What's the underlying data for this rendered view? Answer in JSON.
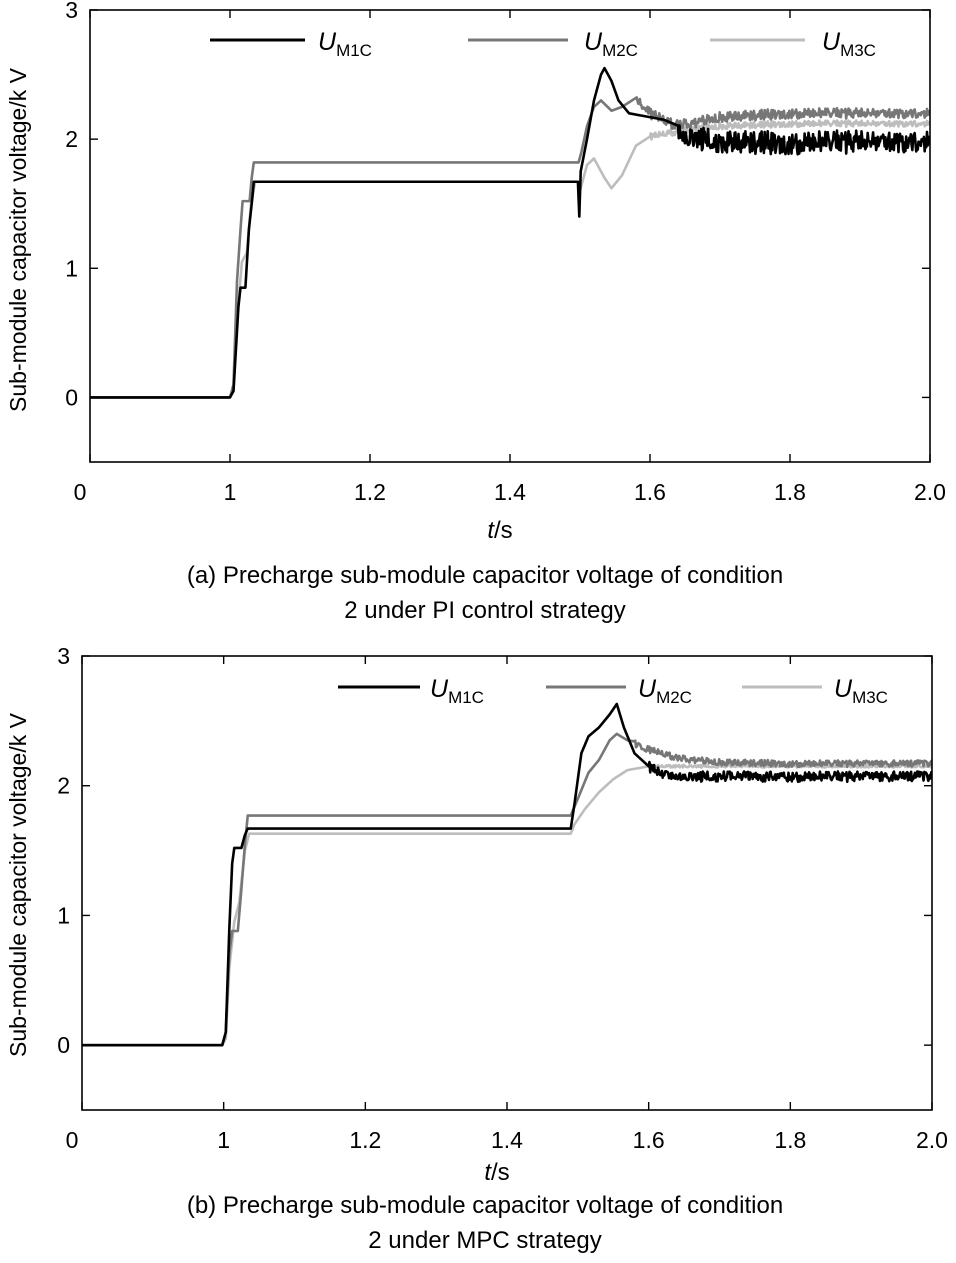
{
  "chart_data": [
    {
      "type": "line",
      "caption": [
        "(a) Precharge sub-module capacitor voltage of condition",
        "2 under PI control strategy"
      ],
      "xlabel": {
        "italic": "t",
        "rest": "/s"
      },
      "ylabel": "Sub-module capacitor voltage/k V",
      "xlim": [
        0.8,
        2.0
      ],
      "ylim": [
        -0.5,
        3.0
      ],
      "x_ticks": [
        {
          "value": 0.8,
          "label": "0"
        },
        {
          "value": 1.0,
          "label": "1"
        },
        {
          "value": 1.2,
          "label": "1.2"
        },
        {
          "value": 1.4,
          "label": "1.4"
        },
        {
          "value": 1.6,
          "label": "1.6"
        },
        {
          "value": 1.8,
          "label": "1.8"
        },
        {
          "value": 2.0,
          "label": "2.0"
        }
      ],
      "y_ticks": [
        {
          "value": 0,
          "label": "0"
        },
        {
          "value": 1,
          "label": "1"
        },
        {
          "value": 2,
          "label": "2"
        },
        {
          "value": 3,
          "label": "3"
        }
      ],
      "legend": [
        {
          "main": "U",
          "sub": "M1C",
          "color": "#000000"
        },
        {
          "main": "U",
          "sub": "M2C",
          "color": "#777777"
        },
        {
          "main": "U",
          "sub": "M3C",
          "color": "#bdbdbd"
        }
      ],
      "series": [
        {
          "name": "UM1C",
          "color": "#000000",
          "points": [
            [
              0.8,
              0
            ],
            [
              1.0,
              0
            ],
            [
              1.005,
              0.05
            ],
            [
              1.012,
              0.7
            ],
            [
              1.015,
              0.85
            ],
            [
              1.022,
              0.85
            ],
            [
              1.027,
              1.3
            ],
            [
              1.032,
              1.55
            ],
            [
              1.034,
              1.67
            ],
            [
              1.497,
              1.67
            ],
            [
              1.499,
              1.4
            ],
            [
              1.501,
              1.75
            ],
            [
              1.51,
              2.0
            ],
            [
              1.52,
              2.3
            ],
            [
              1.53,
              2.5
            ],
            [
              1.535,
              2.55
            ],
            [
              1.545,
              2.45
            ],
            [
              1.555,
              2.3
            ],
            [
              1.57,
              2.2
            ],
            [
              1.59,
              2.18
            ],
            [
              1.62,
              2.15
            ],
            [
              1.65,
              2.02
            ],
            [
              1.7,
              1.98
            ],
            [
              1.8,
              1.97
            ],
            [
              1.9,
              1.98
            ],
            [
              2.0,
              1.98
            ]
          ],
          "noise": {
            "start": 1.64,
            "end": 2.0,
            "amp": 0.09
          }
        },
        {
          "name": "UM2C",
          "color": "#777777",
          "points": [
            [
              0.8,
              0
            ],
            [
              1.0,
              0
            ],
            [
              1.005,
              0.1
            ],
            [
              1.01,
              0.9
            ],
            [
              1.015,
              1.3
            ],
            [
              1.018,
              1.52
            ],
            [
              1.028,
              1.52
            ],
            [
              1.031,
              1.7
            ],
            [
              1.034,
              1.82
            ],
            [
              1.498,
              1.82
            ],
            [
              1.502,
              1.9
            ],
            [
              1.51,
              2.1
            ],
            [
              1.52,
              2.25
            ],
            [
              1.53,
              2.3
            ],
            [
              1.545,
              2.22
            ],
            [
              1.56,
              2.25
            ],
            [
              1.58,
              2.32
            ],
            [
              1.6,
              2.2
            ],
            [
              1.63,
              2.12
            ],
            [
              1.66,
              2.12
            ],
            [
              1.7,
              2.17
            ],
            [
              1.8,
              2.2
            ],
            [
              1.9,
              2.2
            ],
            [
              2.0,
              2.2
            ]
          ],
          "noise": {
            "start": 1.58,
            "end": 2.0,
            "amp": 0.04
          }
        },
        {
          "name": "UM3C",
          "color": "#bdbdbd",
          "points": [
            [
              0.8,
              0
            ],
            [
              1.0,
              0
            ],
            [
              1.005,
              0.05
            ],
            [
              1.01,
              0.6
            ],
            [
              1.017,
              1.05
            ],
            [
              1.024,
              1.12
            ],
            [
              1.03,
              1.5
            ],
            [
              1.036,
              1.67
            ],
            [
              1.497,
              1.67
            ],
            [
              1.5,
              1.6
            ],
            [
              1.51,
              1.8
            ],
            [
              1.52,
              1.85
            ],
            [
              1.535,
              1.7
            ],
            [
              1.545,
              1.62
            ],
            [
              1.56,
              1.72
            ],
            [
              1.58,
              1.95
            ],
            [
              1.6,
              2.02
            ],
            [
              1.63,
              2.05
            ],
            [
              1.66,
              2.08
            ],
            [
              1.7,
              2.1
            ],
            [
              1.8,
              2.12
            ],
            [
              1.9,
              2.12
            ],
            [
              2.0,
              2.12
            ]
          ],
          "noise": {
            "start": 1.6,
            "end": 2.0,
            "amp": 0.025
          }
        }
      ]
    },
    {
      "type": "line",
      "caption": [
        "(b) Precharge sub-module capacitor voltage of condition",
        "2 under MPC strategy"
      ],
      "xlabel": {
        "italic": "t",
        "rest": "/s"
      },
      "ylabel": "Sub-module capacitor voltage/k V",
      "xlim": [
        0.8,
        2.0
      ],
      "ylim": [
        -0.5,
        3.0
      ],
      "x_ticks": [
        {
          "value": 0.8,
          "label": "0"
        },
        {
          "value": 1.0,
          "label": "1"
        },
        {
          "value": 1.2,
          "label": "1.2"
        },
        {
          "value": 1.4,
          "label": "1.4"
        },
        {
          "value": 1.6,
          "label": "1.6"
        },
        {
          "value": 1.8,
          "label": "1.8"
        },
        {
          "value": 2.0,
          "label": "2.0"
        }
      ],
      "y_ticks": [
        {
          "value": 0,
          "label": "0"
        },
        {
          "value": 1,
          "label": "1"
        },
        {
          "value": 2,
          "label": "2"
        },
        {
          "value": 3,
          "label": "3"
        }
      ],
      "legend": [
        {
          "main": "U",
          "sub": "M1C",
          "color": "#000000"
        },
        {
          "main": "U",
          "sub": "M2C",
          "color": "#777777"
        },
        {
          "main": "U",
          "sub": "M3C",
          "color": "#bdbdbd"
        }
      ],
      "series": [
        {
          "name": "UM1C",
          "color": "#000000",
          "points": [
            [
              0.8,
              0
            ],
            [
              0.998,
              0
            ],
            [
              1.003,
              0.1
            ],
            [
              1.008,
              0.9
            ],
            [
              1.012,
              1.4
            ],
            [
              1.015,
              1.52
            ],
            [
              1.025,
              1.52
            ],
            [
              1.03,
              1.62
            ],
            [
              1.034,
              1.67
            ],
            [
              1.49,
              1.67
            ],
            [
              1.495,
              1.85
            ],
            [
              1.505,
              2.25
            ],
            [
              1.515,
              2.38
            ],
            [
              1.53,
              2.45
            ],
            [
              1.545,
              2.55
            ],
            [
              1.555,
              2.63
            ],
            [
              1.565,
              2.45
            ],
            [
              1.58,
              2.25
            ],
            [
              1.6,
              2.15
            ],
            [
              1.62,
              2.08
            ],
            [
              1.65,
              2.07
            ],
            [
              1.8,
              2.07
            ],
            [
              2.0,
              2.07
            ]
          ],
          "noise": {
            "start": 1.6,
            "end": 2.0,
            "amp": 0.04
          }
        },
        {
          "name": "UM2C",
          "color": "#777777",
          "points": [
            [
              0.8,
              0
            ],
            [
              0.998,
              0
            ],
            [
              1.003,
              0.1
            ],
            [
              1.008,
              0.7
            ],
            [
              1.012,
              0.88
            ],
            [
              1.02,
              0.88
            ],
            [
              1.025,
              1.2
            ],
            [
              1.03,
              1.55
            ],
            [
              1.034,
              1.77
            ],
            [
              1.49,
              1.77
            ],
            [
              1.5,
              1.9
            ],
            [
              1.515,
              2.1
            ],
            [
              1.53,
              2.2
            ],
            [
              1.545,
              2.35
            ],
            [
              1.555,
              2.4
            ],
            [
              1.57,
              2.35
            ],
            [
              1.6,
              2.28
            ],
            [
              1.63,
              2.23
            ],
            [
              1.66,
              2.2
            ],
            [
              1.7,
              2.18
            ],
            [
              1.8,
              2.17
            ],
            [
              2.0,
              2.17
            ]
          ],
          "noise": {
            "start": 1.58,
            "end": 2.0,
            "amp": 0.025
          }
        },
        {
          "name": "UM3C",
          "color": "#bdbdbd",
          "points": [
            [
              0.8,
              0
            ],
            [
              0.998,
              0
            ],
            [
              1.003,
              0.05
            ],
            [
              1.008,
              0.6
            ],
            [
              1.015,
              0.95
            ],
            [
              1.022,
              1.1
            ],
            [
              1.03,
              1.5
            ],
            [
              1.036,
              1.63
            ],
            [
              1.49,
              1.63
            ],
            [
              1.495,
              1.7
            ],
            [
              1.51,
              1.82
            ],
            [
              1.53,
              1.95
            ],
            [
              1.55,
              2.05
            ],
            [
              1.57,
              2.12
            ],
            [
              1.6,
              2.15
            ],
            [
              1.65,
              2.15
            ],
            [
              2.0,
              2.15
            ]
          ],
          "noise": {
            "start": 1.6,
            "end": 2.0,
            "amp": 0.01
          }
        }
      ]
    }
  ]
}
